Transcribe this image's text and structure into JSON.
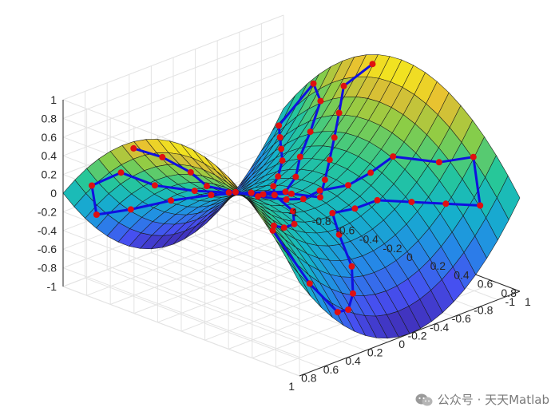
{
  "chart_data": {
    "type": "surface",
    "surface_function": "z = x^2 - y^2",
    "grid_resolution": 21,
    "xlim": [
      -1,
      1
    ],
    "ylim": [
      -1,
      1
    ],
    "zlim": [
      -1,
      1
    ],
    "x_ticks": [
      "-1",
      "-0.8",
      "-0.6",
      "-0.4",
      "-0.2",
      "0",
      "0.2",
      "0.4",
      "0.6",
      "0.8",
      "1"
    ],
    "y_ticks": [
      "-1",
      "-0.8",
      "-0.6",
      "-0.4",
      "-0.2",
      "0",
      "0.2",
      "0.4",
      "0.6",
      "0.8",
      "1"
    ],
    "z_ticks": [
      "-1",
      "-0.8",
      "-0.6",
      "-0.4",
      "-0.2",
      "0",
      "0.2",
      "0.4",
      "0.6",
      "0.8",
      "1"
    ],
    "colormap": "parula",
    "grid": true,
    "line_color": "#1010e0",
    "marker_color": "#e01010",
    "trajectory": [
      [
        0.95,
        -0.45
      ],
      [
        0.85,
        -0.3
      ],
      [
        0.7,
        -0.2
      ],
      [
        0.5,
        -0.25
      ],
      [
        0.4,
        -0.1
      ],
      [
        0.25,
        -0.05
      ],
      [
        0.1,
        0.05
      ],
      [
        0.0,
        0.1
      ],
      [
        -0.15,
        0.1
      ],
      [
        -0.3,
        0.2
      ],
      [
        -0.45,
        0.25
      ],
      [
        -0.6,
        0.3
      ],
      [
        -0.75,
        0.55
      ],
      [
        -0.9,
        0.7
      ],
      [
        -0.8,
        0.85
      ],
      [
        -0.65,
        0.7
      ],
      [
        -0.5,
        0.55
      ],
      [
        -0.35,
        0.4
      ],
      [
        -0.2,
        0.35
      ],
      [
        -0.05,
        0.3
      ],
      [
        0.05,
        0.45
      ],
      [
        0.15,
        0.65
      ],
      [
        0.3,
        0.8
      ],
      [
        0.45,
        0.9
      ],
      [
        0.6,
        0.95
      ],
      [
        0.8,
        0.9
      ],
      [
        0.92,
        0.7
      ],
      [
        0.75,
        0.55
      ],
      [
        0.55,
        0.45
      ],
      [
        0.35,
        0.35
      ],
      [
        0.2,
        0.2
      ],
      [
        0.1,
        -0.05
      ],
      [
        -0.05,
        -0.2
      ],
      [
        -0.2,
        -0.3
      ],
      [
        -0.4,
        -0.45
      ],
      [
        -0.55,
        -0.6
      ],
      [
        -0.7,
        -0.75
      ],
      [
        -0.85,
        -0.9
      ],
      [
        -0.95,
        -0.7
      ],
      [
        -0.8,
        -0.5
      ],
      [
        -0.6,
        -0.4
      ],
      [
        -0.4,
        -0.3
      ],
      [
        -0.2,
        -0.15
      ],
      [
        0.0,
        -0.05
      ],
      [
        0.15,
        -0.2
      ],
      [
        0.3,
        -0.4
      ],
      [
        0.45,
        -0.6
      ],
      [
        0.6,
        -0.8
      ],
      [
        0.75,
        -0.95
      ],
      [
        0.9,
        -0.85
      ],
      [
        0.85,
        -0.65
      ],
      [
        0.65,
        -0.55
      ],
      [
        0.45,
        -0.4
      ],
      [
        0.3,
        -0.25
      ],
      [
        0.15,
        -0.1
      ],
      [
        0.0,
        0.0
      ],
      [
        -0.1,
        0.15
      ],
      [
        -0.25,
        0.05
      ],
      [
        -0.4,
        -0.05
      ],
      [
        -0.55,
        -0.15
      ],
      [
        -0.7,
        -0.25
      ],
      [
        -0.85,
        -0.35
      ],
      [
        -0.95,
        -0.2
      ]
    ]
  },
  "watermark": {
    "text": "公众号 · 天天Matlab",
    "icon": "wechat-icon"
  }
}
